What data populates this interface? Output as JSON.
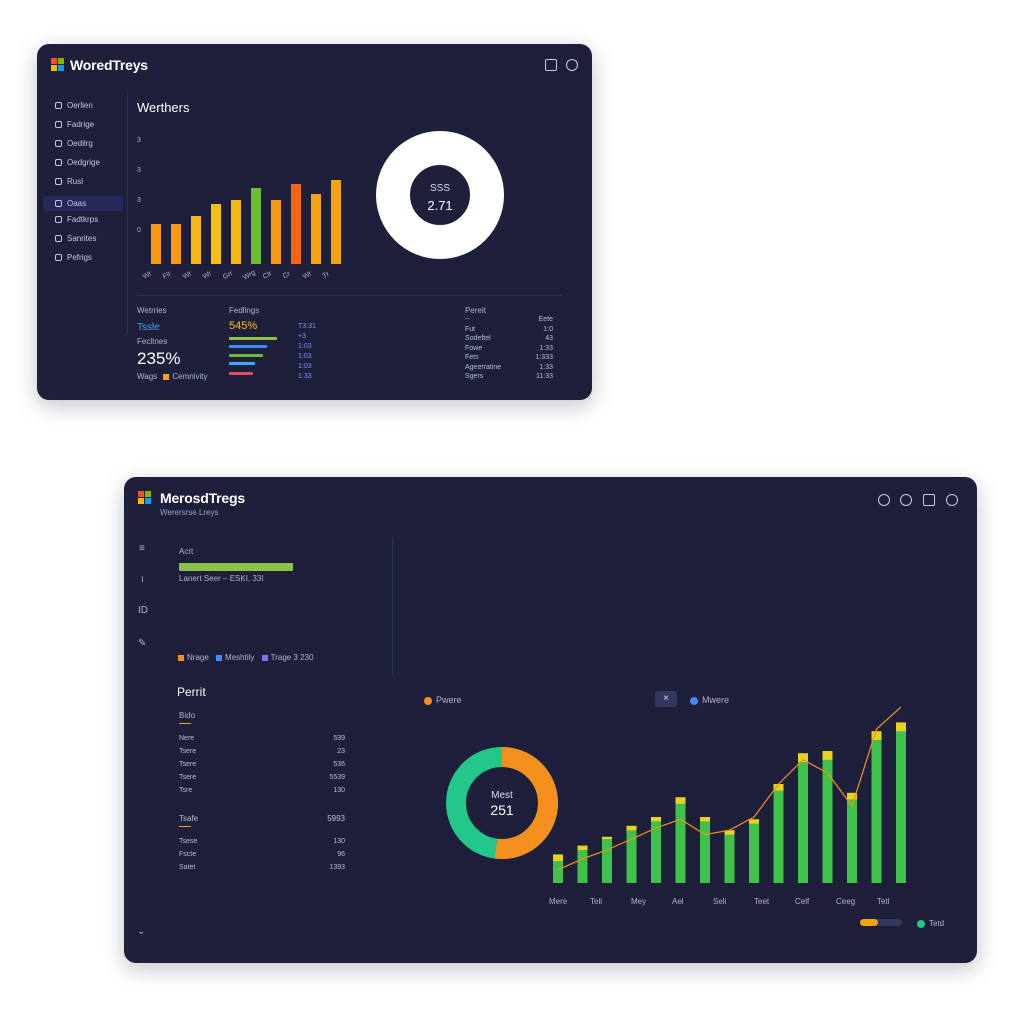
{
  "win1": {
    "app_title": "WoredTreys",
    "nav": [
      {
        "label": "Oerlien"
      },
      {
        "label": "Fadrige"
      },
      {
        "label": "Oedilrg"
      },
      {
        "label": "Oedgrige"
      },
      {
        "label": "Rusl"
      },
      {
        "label": "Oaas"
      },
      {
        "label": "Fadtkrps"
      },
      {
        "label": "Sanrites"
      },
      {
        "label": "Pefrigs"
      }
    ],
    "chart_title": "Werthers",
    "y_ticks": [
      "3",
      "3",
      "3",
      "0"
    ],
    "donut_line1": "SSS",
    "donut_line2": "2.71",
    "bottom": {
      "c1_title": "Wetrries",
      "c1_value": "Tssle",
      "c1_label": "Fecltnes",
      "c1_big": "235%",
      "c1_legend_a": "Wags",
      "c1_legend_b": "Cemnivity",
      "c2_title": "Fedllngs",
      "c2_value": "545%",
      "c2_nums": [
        "T3:31",
        "+3",
        "1:03",
        "1:03",
        "1:03",
        "1:33"
      ],
      "c3_title": "Pereit",
      "c3_rows": [
        {
          "k": "--",
          "v": "Eete"
        },
        {
          "k": "Fut",
          "v": "1:0"
        },
        {
          "k": "Sodeftel",
          "v": "43"
        },
        {
          "k": "Fowe",
          "v": "1:33"
        },
        {
          "k": "Fets",
          "v": "1:333"
        },
        {
          "k": "Ageerratine",
          "v": "1:33"
        },
        {
          "k": "Sgers",
          "v": "11:33"
        }
      ]
    }
  },
  "win2": {
    "app_title": "MerosdTregs",
    "subtitle": "Werersrse Lreys",
    "left": {
      "label_top": "Acrt",
      "progress_caption": "Lanert Seer – ESKI, 33I",
      "legend": [
        "Nrage",
        "Meshtily",
        "Trage 3 230"
      ],
      "report_title": "Perrit",
      "section1": "Bido",
      "rows1": [
        {
          "k": "Nere",
          "v": "539"
        },
        {
          "k": "Tsere",
          "v": "23"
        },
        {
          "k": "Tsere",
          "v": "536"
        },
        {
          "k": "Tsere",
          "v": "5539"
        },
        {
          "k": "Tsre",
          "v": "130"
        }
      ],
      "section2": "Tsafe",
      "section2_value": "5993",
      "rows2": [
        {
          "k": "Tsese",
          "v": "130"
        },
        {
          "k": "Fscte",
          "v": "96"
        },
        {
          "k": "Satet",
          "v": "1393"
        }
      ]
    },
    "main": {
      "legend_left": "Pwere",
      "legend_right": "Mwere",
      "donut_line1": "Mest",
      "donut_line2": "251",
      "x_labels": [
        "Mere",
        "Tell",
        "Mey",
        "Ael",
        "Seli",
        "Teet",
        "Celf",
        "Ceeg",
        "Tetl"
      ],
      "footer_legend": "Tetd"
    }
  },
  "chart_data": [
    {
      "type": "bar",
      "categories": [
        "Wr",
        "Flr",
        "Wr",
        "Wr",
        "Grr",
        "Wrg",
        "Clr",
        "Cr",
        "Wr",
        "Tr"
      ],
      "values": [
        1.0,
        1.0,
        1.2,
        1.5,
        1.6,
        1.9,
        1.6,
        2.0,
        1.75,
        2.1
      ],
      "colors": [
        "#f59a12",
        "#f59a12",
        "#f5b912",
        "#f5c012",
        "#f5b912",
        "#6bbd2f",
        "#f59a12",
        "#f56612",
        "#f5a312",
        "#f5a312"
      ],
      "ylabel": "",
      "ylim": [
        0,
        3
      ]
    },
    {
      "type": "pie",
      "values": [
        100
      ],
      "colors": [
        "#ffffff"
      ],
      "center_text": [
        "SSS",
        "2.71"
      ]
    },
    {
      "type": "pie",
      "values": [
        48,
        52
      ],
      "colors": [
        "#22c78a",
        "#f5901e"
      ],
      "center_text": [
        "Mest",
        "251"
      ]
    },
    {
      "type": "bar",
      "series": [
        {
          "name": "Pwere",
          "values": [
            26,
            34,
            42,
            52,
            60,
            78,
            60,
            48,
            58,
            90,
            118,
            120,
            82,
            138,
            146
          ]
        },
        {
          "name": "Mwere",
          "values": [
            20,
            30,
            40,
            48,
            56,
            72,
            56,
            44,
            54,
            84,
            110,
            112,
            76,
            130,
            138
          ]
        }
      ],
      "colors": [
        "#e8d21c",
        "#3fc24a"
      ],
      "trend_line": [
        12,
        22,
        30,
        40,
        50,
        58,
        44,
        48,
        60,
        90,
        112,
        100,
        70,
        140,
        160
      ]
    }
  ]
}
